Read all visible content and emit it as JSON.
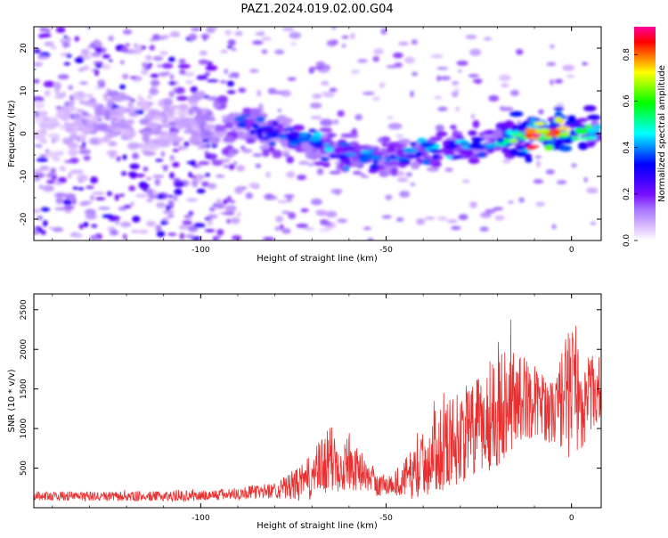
{
  "title": "PAZ1.2024.019.02.00.G04",
  "chart_data": [
    {
      "type": "heatmap",
      "xlabel": "Height of straight line (km)",
      "ylabel": "Frequency (Hz)",
      "xlim": [
        -145,
        8
      ],
      "ylim": [
        -25,
        25
      ],
      "xticks": [
        -100,
        -50,
        0
      ],
      "xtick_labels": [
        "-100",
        "-50",
        "0"
      ],
      "yticks": [
        -20,
        -10,
        0,
        10,
        20
      ],
      "ytick_labels": [
        "-20",
        "-10",
        "0",
        "10",
        "20"
      ],
      "colorbar": {
        "label": "Normalized spectral amplitude",
        "range": [
          0,
          0.92
        ],
        "ticks": [
          0.0,
          0.2,
          0.4,
          0.6,
          0.8
        ],
        "tick_labels": [
          "0.0",
          "0.2",
          "0.4",
          "0.6",
          "0.8"
        ],
        "colormap": [
          "#ffffff",
          "#d8b8ff",
          "#a878ff",
          "#7a10ff",
          "#3a00ff",
          "#0000ff",
          "#0080ff",
          "#00ffff",
          "#00ff80",
          "#00ff00",
          "#80ff00",
          "#ffff00",
          "#ff8000",
          "#ff0000",
          "#ff00a0"
        ]
      },
      "ridge_track": [
        {
          "x": -145,
          "y": 2,
          "amp": 0.1
        },
        {
          "x": -125,
          "y": 3,
          "amp": 0.2
        },
        {
          "x": -105,
          "y": 1,
          "amp": 0.15
        },
        {
          "x": -90,
          "y": 2,
          "amp": 0.3
        },
        {
          "x": -80,
          "y": 0,
          "amp": 0.3
        },
        {
          "x": -70,
          "y": -2,
          "amp": 0.35
        },
        {
          "x": -60,
          "y": -5,
          "amp": 0.35
        },
        {
          "x": -50,
          "y": -6,
          "amp": 0.3
        },
        {
          "x": -40,
          "y": -4,
          "amp": 0.35
        },
        {
          "x": -30,
          "y": -3,
          "amp": 0.35
        },
        {
          "x": -20,
          "y": -2,
          "amp": 0.35
        },
        {
          "x": -10,
          "y": 0,
          "amp": 0.75
        },
        {
          "x": 0,
          "y": 1,
          "amp": 0.6
        },
        {
          "x": 8,
          "y": 0,
          "amp": 0.4
        }
      ]
    },
    {
      "type": "line",
      "xlabel": "Height of straight line (km)",
      "ylabel": "SNR (10 * v/v)",
      "xlim": [
        -145,
        8
      ],
      "ylim": [
        0,
        2700
      ],
      "xticks": [
        -100,
        -50,
        0
      ],
      "xtick_labels": [
        "-100",
        "-50",
        "0"
      ],
      "yticks": [
        500,
        1000,
        1500,
        2000,
        2500
      ],
      "ytick_labels": [
        "500",
        "1000",
        "1500",
        "2000",
        "2500"
      ],
      "color": "#e83030",
      "envelope": {
        "x": [
          -145,
          -120,
          -100,
          -90,
          -80,
          -72,
          -65,
          -60,
          -56,
          -52,
          -48,
          -42,
          -36,
          -30,
          -25,
          -20,
          -15,
          -10,
          -5,
          -2,
          0,
          3,
          5,
          8
        ],
        "mid": [
          150,
          140,
          150,
          180,
          220,
          320,
          600,
          560,
          420,
          280,
          300,
          450,
          750,
          900,
          1000,
          1300,
          1400,
          1350,
          1200,
          1400,
          1500,
          1300,
          1450,
          1500
        ],
        "amp": [
          60,
          60,
          70,
          80,
          100,
          250,
          450,
          350,
          200,
          150,
          150,
          350,
          550,
          600,
          650,
          800,
          600,
          450,
          400,
          700,
          900,
          550,
          500,
          400
        ]
      }
    }
  ]
}
